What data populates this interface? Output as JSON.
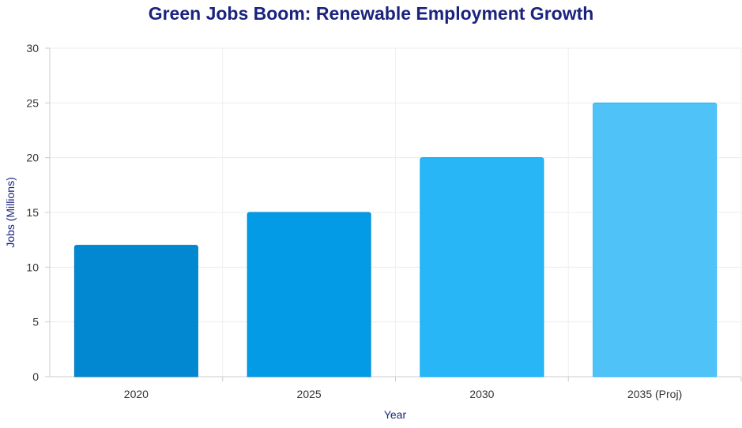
{
  "chart_data": {
    "type": "bar",
    "title": "Green Jobs Boom: Renewable Employment Growth",
    "xlabel": "Year",
    "ylabel": "Jobs (Millions)",
    "categories": [
      "2020",
      "2025",
      "2030",
      "2035 (Proj)"
    ],
    "values": [
      12,
      15,
      20,
      25
    ],
    "ylim": [
      0,
      30
    ],
    "yticks": [
      "0",
      "5",
      "10",
      "15",
      "20",
      "25",
      "30"
    ],
    "grid": true,
    "legend": "none",
    "colors": [
      "#0288d1",
      "#039be5",
      "#29b6f6",
      "#4fc3f7"
    ],
    "border_colors": [
      "#0277bd",
      "#0288d1",
      "#03a9f4",
      "#29b6f6"
    ]
  }
}
